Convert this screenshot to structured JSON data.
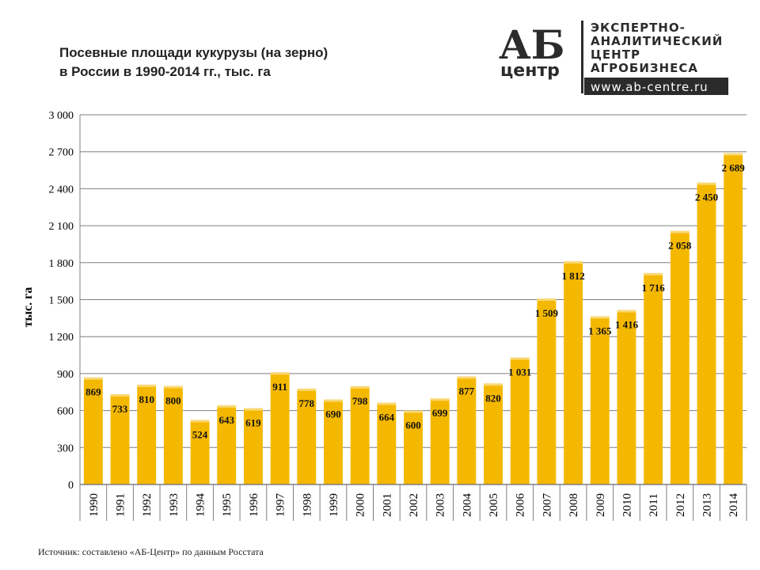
{
  "title_line1": "Посевные площади кукурузы (на зерно)",
  "title_line2": "в России в 1990-2014 гг., тыс. га",
  "logo": {
    "mark_top": "АБ",
    "mark_bottom": "центр",
    "lines": [
      "ЭКСПЕРТНО-",
      "АНАЛИТИЧЕСКИЙ",
      "ЦЕНТР",
      "АГРОБИЗНЕСА"
    ],
    "url": "www.ab-centre.ru"
  },
  "source": "Источник: составлено «АБ-Центр» по данным Росстата",
  "colors": {
    "bar": "#F5B800",
    "grid": "#7f7f7f",
    "logo_dark": "#2b2b2b"
  },
  "chart_data": {
    "type": "bar",
    "ylabel": "тыс. га",
    "ylim": [
      0,
      3000
    ],
    "yticks": [
      0,
      300,
      600,
      900,
      1200,
      1500,
      1800,
      2100,
      2400,
      2700,
      3000
    ],
    "ytick_labels": [
      "0",
      "300",
      "600",
      "900",
      "1 200",
      "1 500",
      "1 800",
      "2 100",
      "2 400",
      "2 700",
      "3 000"
    ],
    "grid": true,
    "categories": [
      "1990",
      "1991",
      "1992",
      "1993",
      "1994",
      "1995",
      "1996",
      "1997",
      "1998",
      "1999",
      "2000",
      "2001",
      "2002",
      "2003",
      "2004",
      "2005",
      "2006",
      "2007",
      "2008",
      "2009",
      "2010",
      "2011",
      "2012",
      "2013",
      "2014"
    ],
    "values": [
      869,
      733,
      810,
      800,
      524,
      643,
      619,
      911,
      778,
      690,
      798,
      664,
      600,
      699,
      877,
      820,
      1031,
      1509,
      1812,
      1365,
      1416,
      1716,
      2058,
      2450,
      2689
    ],
    "value_labels": [
      "869",
      "733",
      "810",
      "800",
      "524",
      "643",
      "619",
      "911",
      "778",
      "690",
      "798",
      "664",
      "600",
      "699",
      "877",
      "820",
      "1 031",
      "1 509",
      "1 812",
      "1 365",
      "1 416",
      "1 716",
      "2 058",
      "2 450",
      "2 689"
    ]
  }
}
